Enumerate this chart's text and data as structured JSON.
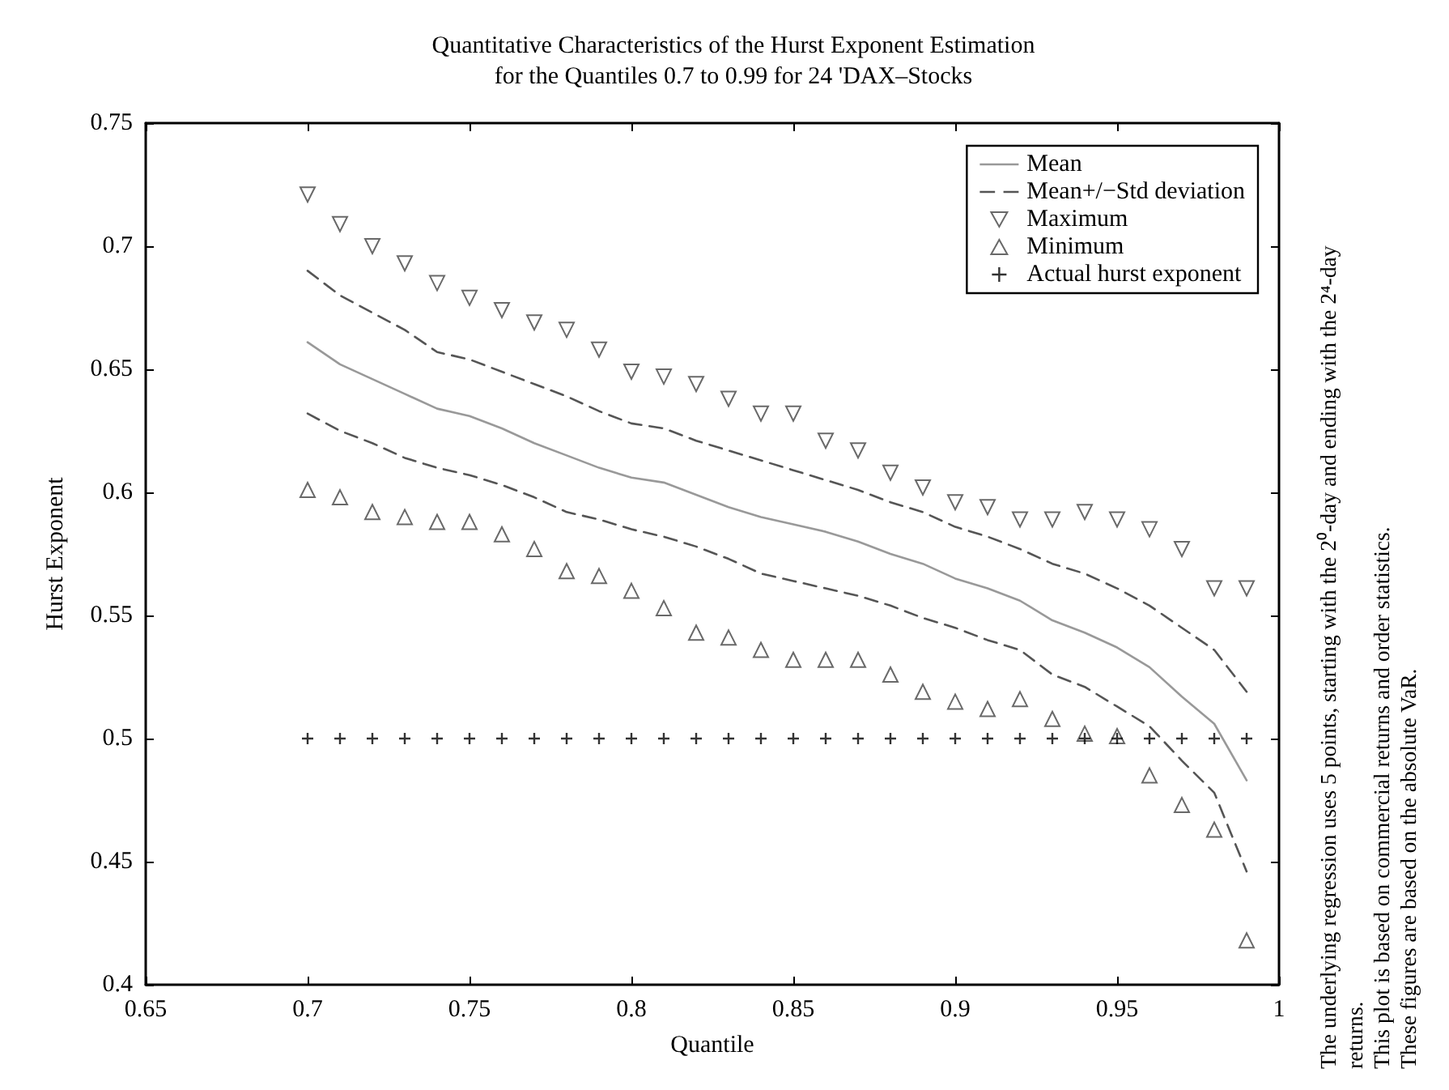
{
  "chart_data": {
    "type": "line",
    "title": "Quantitative Characteristics of the Hurst Exponent Estimation\nfor the Quantiles 0.7 to 0.99 for 24 'DAX–Stocks",
    "xlabel": "Quantile",
    "ylabel": "Hurst Exponent",
    "annotations": [
      "The underlying regression uses 5 points, starting with the 2⁰-day and ending with the 2⁴-day returns.",
      "This plot is based on commercial returns and order statistics.",
      "These figures are based on the absolute VaR."
    ],
    "x": [
      0.7,
      0.71,
      0.72,
      0.73,
      0.74,
      0.75,
      0.76,
      0.77,
      0.78,
      0.79,
      0.8,
      0.81,
      0.82,
      0.83,
      0.84,
      0.85,
      0.86,
      0.87,
      0.88,
      0.89,
      0.9,
      0.91,
      0.92,
      0.93,
      0.94,
      0.95,
      0.96,
      0.97,
      0.98,
      0.99
    ],
    "series": [
      {
        "name": "Mean",
        "color": "#999999",
        "line_style": "solid",
        "marker": "none",
        "values": [
          0.661,
          0.652,
          0.646,
          0.64,
          0.634,
          0.631,
          0.626,
          0.62,
          0.615,
          0.61,
          0.606,
          0.604,
          0.599,
          0.594,
          0.59,
          0.587,
          0.584,
          0.58,
          0.575,
          0.571,
          0.565,
          0.561,
          0.556,
          0.548,
          0.543,
          0.537,
          0.529,
          0.517,
          0.506,
          0.483
        ]
      },
      {
        "name": "Mean+/−Std deviation",
        "color": "#555555",
        "line_style": "dashed",
        "marker": "none",
        "values": [
          0.69,
          0.68,
          0.673,
          0.666,
          0.657,
          0.654,
          0.649,
          0.644,
          0.639,
          0.633,
          0.628,
          0.626,
          0.621,
          0.617,
          0.613,
          0.609,
          0.605,
          0.601,
          0.596,
          0.592,
          0.586,
          0.582,
          0.577,
          0.571,
          0.567,
          0.561,
          0.554,
          0.545,
          0.536,
          0.519
        ]
      },
      {
        "color": "#555555",
        "line_style": "dashed",
        "marker": "none",
        "values": [
          0.632,
          0.625,
          0.62,
          0.614,
          0.61,
          0.607,
          0.603,
          0.598,
          0.592,
          0.589,
          0.585,
          0.582,
          0.578,
          0.573,
          0.567,
          0.564,
          0.561,
          0.558,
          0.554,
          0.549,
          0.545,
          0.54,
          0.536,
          0.526,
          0.521,
          0.513,
          0.505,
          0.491,
          0.478,
          0.446
        ]
      },
      {
        "name": "Maximum",
        "type": "scatter",
        "color": "#444444",
        "marker": "triangle",
        "values": [
          0.721,
          0.709,
          0.7,
          0.693,
          0.685,
          0.679,
          0.674,
          0.669,
          0.666,
          0.658,
          0.649,
          0.647,
          0.644,
          0.638,
          0.632,
          0.632,
          0.621,
          0.617,
          0.608,
          0.602,
          0.596,
          0.594,
          0.589,
          0.589,
          0.592,
          0.589,
          0.585,
          0.577,
          0.561,
          0.561
        ]
      },
      {
        "name": "Minimum",
        "type": "scatter",
        "color": "#444444",
        "marker": "triangle",
        "values": [
          0.601,
          0.598,
          0.592,
          0.59,
          0.588,
          0.588,
          0.583,
          0.577,
          0.568,
          0.566,
          0.56,
          0.553,
          0.543,
          0.541,
          0.536,
          0.532,
          0.532,
          0.532,
          0.526,
          0.519,
          0.515,
          0.512,
          0.516,
          0.508,
          0.502,
          0.501,
          0.485,
          0.473,
          0.463,
          0.418
        ]
      },
      {
        "name": "Actual hurst exponent",
        "type": "scatter",
        "color": "#000000",
        "marker": "cross",
        "values": [
          0.5,
          0.5,
          0.5,
          0.5,
          0.5,
          0.5,
          0.5,
          0.5,
          0.5,
          0.5,
          0.5,
          0.5,
          0.5,
          0.5,
          0.5,
          0.5,
          0.5,
          0.5,
          0.5,
          0.5,
          0.5,
          0.5,
          0.5,
          0.5,
          0.5,
          0.5,
          0.5,
          0.5,
          0.5,
          0.5
        ]
      }
    ],
    "xlim": [
      0.65,
      1
    ],
    "xticks": [
      0.65,
      0.7,
      0.75,
      0.8,
      0.85,
      0.9,
      0.95,
      1
    ],
    "ylim": [
      0.4,
      0.75
    ],
    "yticks": [
      0.4,
      0.45,
      0.5,
      0.55,
      0.6,
      0.65,
      0.7,
      0.75
    ],
    "grid": false,
    "legend": "top right"
  }
}
